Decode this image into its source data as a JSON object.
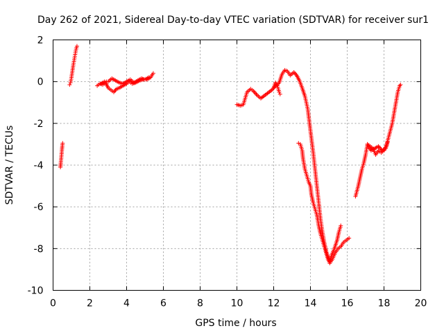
{
  "chart_data": {
    "type": "scatter",
    "title": "Day 262 of 2021, Sidereal Day-to-day VTEC variation (SDTVAR) for receiver sur1",
    "xlabel": "GPS time / hours",
    "ylabel": "SDTVAR / TECUs",
    "xlim": [
      0,
      20
    ],
    "ylim": [
      -10,
      2
    ],
    "xticks": [
      "0",
      "2",
      "4",
      "6",
      "8",
      "10",
      "12",
      "14",
      "16",
      "18",
      "20"
    ],
    "yticks": [
      "-10",
      "-8",
      "-6",
      "-4",
      "-2",
      "0",
      "2"
    ],
    "grid": true,
    "marker": "+",
    "series_color": "#ff0000",
    "series": [
      {
        "name": "sur1",
        "segments": [
          [
            [
              0.4,
              -4.1
            ],
            [
              0.42,
              -3.9
            ],
            [
              0.45,
              -3.6
            ],
            [
              0.48,
              -3.3
            ],
            [
              0.5,
              -3.1
            ],
            [
              0.52,
              -2.95
            ]
          ],
          [
            [
              0.9,
              -0.15
            ],
            [
              0.95,
              -0.05
            ],
            [
              1.0,
              0.2
            ],
            [
              1.05,
              0.5
            ],
            [
              1.1,
              0.8
            ],
            [
              1.15,
              1.05
            ],
            [
              1.2,
              1.3
            ],
            [
              1.25,
              1.55
            ],
            [
              1.3,
              1.7
            ]
          ],
          [
            [
              2.4,
              -0.2
            ],
            [
              2.55,
              -0.1
            ],
            [
              2.7,
              -0.15
            ],
            [
              2.85,
              -0.05
            ],
            [
              3.0,
              -0.3
            ],
            [
              3.15,
              -0.4
            ],
            [
              3.3,
              -0.5
            ],
            [
              3.45,
              -0.35
            ],
            [
              3.6,
              -0.3
            ],
            [
              3.8,
              -0.2
            ],
            [
              4.0,
              -0.1
            ],
            [
              4.15,
              0.0
            ],
            [
              4.3,
              -0.1
            ],
            [
              4.5,
              -0.05
            ],
            [
              4.7,
              0.05
            ],
            [
              4.9,
              0.1
            ],
            [
              5.1,
              0.1
            ],
            [
              5.3,
              0.2
            ],
            [
              5.45,
              0.4
            ]
          ],
          [
            [
              2.6,
              -0.1
            ],
            [
              2.8,
              0.0
            ],
            [
              3.0,
              0.0
            ],
            [
              3.2,
              0.15
            ],
            [
              3.4,
              0.05
            ],
            [
              3.6,
              -0.05
            ],
            [
              3.8,
              -0.1
            ],
            [
              4.0,
              0.0
            ],
            [
              4.2,
              0.1
            ],
            [
              4.4,
              -0.05
            ],
            [
              4.6,
              0.05
            ],
            [
              4.8,
              0.15
            ],
            [
              5.0,
              0.1
            ],
            [
              5.2,
              0.2
            ]
          ],
          [
            [
              10.0,
              -1.1
            ],
            [
              10.2,
              -1.15
            ],
            [
              10.35,
              -1.1
            ],
            [
              10.45,
              -0.8
            ],
            [
              10.55,
              -0.5
            ],
            [
              10.75,
              -0.35
            ],
            [
              10.9,
              -0.45
            ],
            [
              11.1,
              -0.65
            ],
            [
              11.3,
              -0.8
            ],
            [
              11.6,
              -0.6
            ],
            [
              11.9,
              -0.4
            ],
            [
              12.1,
              -0.2
            ],
            [
              12.25,
              -0.1
            ],
            [
              12.3,
              -0.05
            ],
            [
              12.45,
              0.35
            ],
            [
              12.6,
              0.55
            ],
            [
              12.75,
              0.5
            ],
            [
              12.9,
              0.3
            ],
            [
              13.1,
              0.45
            ],
            [
              13.25,
              0.3
            ],
            [
              13.4,
              0.05
            ],
            [
              13.55,
              -0.3
            ],
            [
              13.7,
              -0.7
            ],
            [
              13.85,
              -1.3
            ],
            [
              13.95,
              -2.0
            ],
            [
              14.05,
              -2.7
            ],
            [
              14.15,
              -3.4
            ],
            [
              14.25,
              -4.2
            ],
            [
              14.35,
              -5.0
            ],
            [
              14.45,
              -5.8
            ],
            [
              14.55,
              -6.6
            ],
            [
              14.65,
              -7.2
            ],
            [
              14.75,
              -7.7
            ],
            [
              14.85,
              -8.1
            ],
            [
              14.95,
              -8.4
            ],
            [
              15.05,
              -8.6
            ],
            [
              15.15,
              -8.3
            ],
            [
              15.3,
              -8.0
            ],
            [
              15.45,
              -7.6
            ],
            [
              15.55,
              -7.2
            ],
            [
              15.65,
              -6.9
            ]
          ],
          [
            [
              12.0,
              -0.3
            ],
            [
              12.1,
              -0.05
            ],
            [
              12.2,
              -0.2
            ],
            [
              12.3,
              -0.5
            ],
            [
              12.35,
              -0.6
            ]
          ],
          [
            [
              13.35,
              -2.95
            ],
            [
              13.45,
              -3.0
            ],
            [
              13.55,
              -3.3
            ],
            [
              13.6,
              -3.7
            ],
            [
              13.7,
              -4.2
            ],
            [
              13.8,
              -4.5
            ],
            [
              13.9,
              -4.8
            ],
            [
              14.0,
              -5.0
            ],
            [
              14.05,
              -5.4
            ],
            [
              14.15,
              -5.8
            ],
            [
              14.25,
              -6.1
            ],
            [
              14.35,
              -6.4
            ],
            [
              14.45,
              -6.9
            ],
            [
              14.55,
              -7.3
            ],
            [
              14.65,
              -7.6
            ],
            [
              14.75,
              -7.9
            ],
            [
              14.85,
              -8.2
            ],
            [
              14.95,
              -8.5
            ],
            [
              15.05,
              -8.7
            ],
            [
              15.2,
              -8.5
            ],
            [
              15.35,
              -8.2
            ],
            [
              15.5,
              -8.0
            ],
            [
              15.65,
              -7.9
            ],
            [
              15.8,
              -7.7
            ],
            [
              15.95,
              -7.6
            ],
            [
              16.1,
              -7.5
            ]
          ],
          [
            [
              16.45,
              -5.5
            ],
            [
              16.6,
              -5.0
            ],
            [
              16.7,
              -4.6
            ],
            [
              16.8,
              -4.2
            ],
            [
              16.9,
              -3.9
            ],
            [
              17.0,
              -3.5
            ],
            [
              17.1,
              -3.0
            ],
            [
              17.25,
              -3.1
            ],
            [
              17.4,
              -3.2
            ],
            [
              17.55,
              -3.5
            ],
            [
              17.7,
              -3.3
            ],
            [
              17.85,
              -3.4
            ],
            [
              18.0,
              -3.3
            ],
            [
              18.15,
              -3.0
            ],
            [
              18.3,
              -2.5
            ],
            [
              18.45,
              -2.0
            ],
            [
              18.55,
              -1.5
            ],
            [
              18.65,
              -1.0
            ],
            [
              18.75,
              -0.5
            ],
            [
              18.85,
              -0.2
            ],
            [
              18.9,
              -0.15
            ]
          ],
          [
            [
              17.1,
              -3.0
            ],
            [
              17.3,
              -3.3
            ],
            [
              17.5,
              -3.2
            ],
            [
              17.7,
              -3.1
            ],
            [
              17.9,
              -3.3
            ],
            [
              18.1,
              -3.2
            ],
            [
              18.2,
              -2.9
            ]
          ]
        ]
      }
    ]
  }
}
